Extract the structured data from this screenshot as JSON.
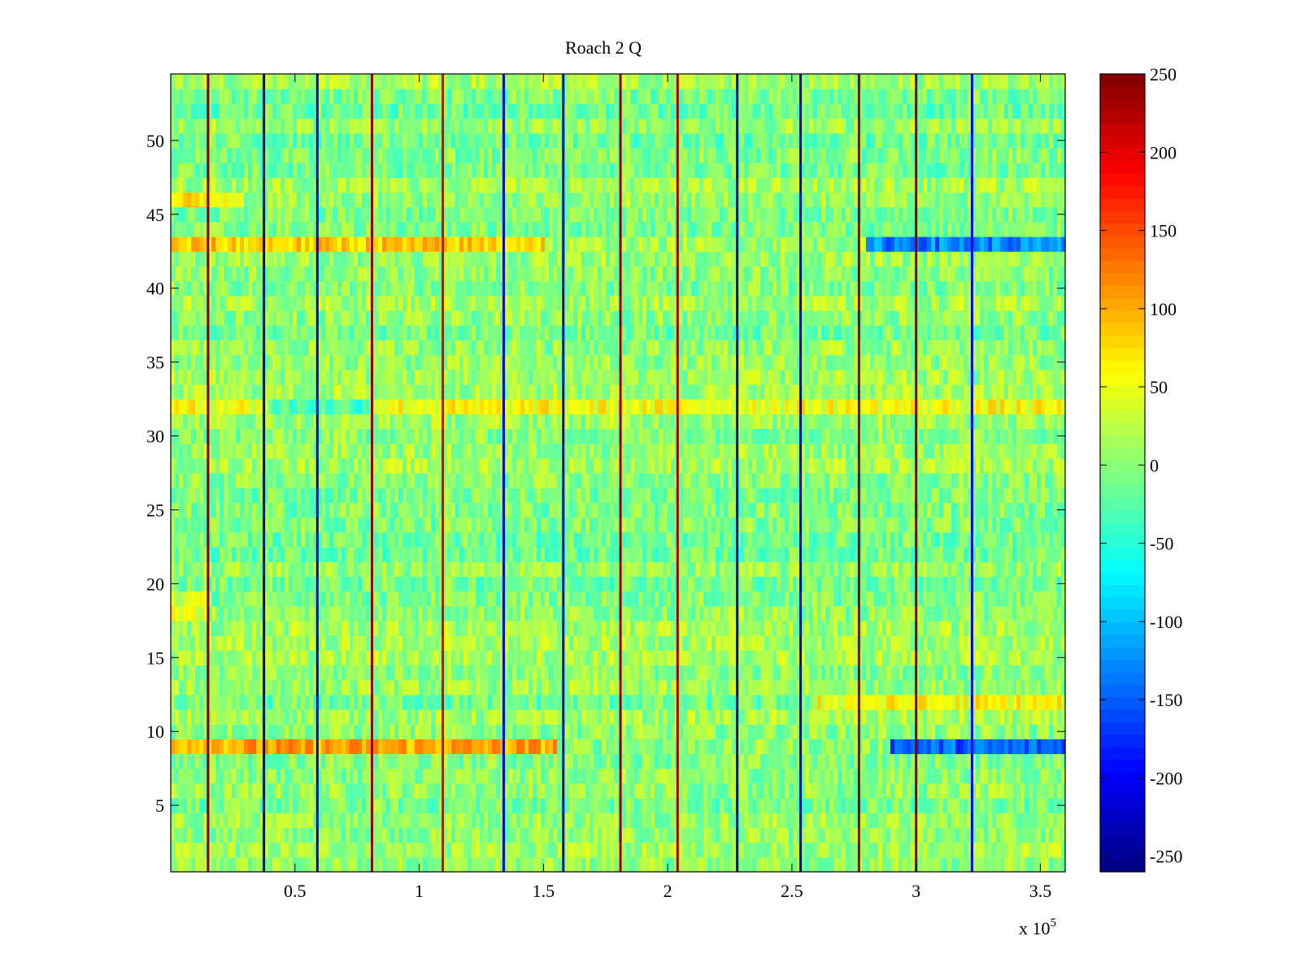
{
  "chart_data": {
    "type": "heatmap",
    "title": "Roach 2 Q",
    "xlabel": "",
    "ylabel": "",
    "x_multiplier_label": "x 10",
    "x_multiplier_exponent": "5",
    "xlim": [
      0,
      3.6
    ],
    "ylim": [
      0.5,
      54.5
    ],
    "x_ticks": [
      0.5,
      1,
      1.5,
      2,
      2.5,
      3,
      3.5
    ],
    "x_tick_labels": [
      "0.5",
      "1",
      "1.5",
      "2",
      "2.5",
      "3",
      "3.5"
    ],
    "y_ticks": [
      5,
      10,
      15,
      20,
      25,
      30,
      35,
      40,
      45,
      50
    ],
    "y_tick_labels": [
      "5",
      "10",
      "15",
      "20",
      "25",
      "30",
      "35",
      "40",
      "45",
      "50"
    ],
    "n_rows": 54,
    "colormap": "jet",
    "clim": [
      -260,
      250
    ],
    "colorbar_ticks": [
      250,
      200,
      150,
      100,
      50,
      0,
      -50,
      -100,
      -150,
      -200,
      -250
    ],
    "colorbar_tick_labels": [
      "250",
      "200",
      "150",
      "100",
      "50",
      "0",
      "-50",
      "-100",
      "-150",
      "-200",
      "-250"
    ],
    "baseline_value": 0,
    "noise_amplitude": 35,
    "vertical_stripes": [
      {
        "x": 0.15,
        "value": 250
      },
      {
        "x": 0.375,
        "value": -250
      },
      {
        "x": 0.59,
        "value": -230
      },
      {
        "x": 0.81,
        "value": 240
      },
      {
        "x": 1.095,
        "value": 200
      },
      {
        "x": 1.34,
        "value": -220
      },
      {
        "x": 1.58,
        "value": -210
      },
      {
        "x": 1.81,
        "value": 240
      },
      {
        "x": 2.04,
        "value": 230
      },
      {
        "x": 2.28,
        "value": -230
      },
      {
        "x": 2.535,
        "value": -220
      },
      {
        "x": 2.77,
        "value": 240
      },
      {
        "x": 3.0,
        "value": 250
      },
      {
        "x": 3.225,
        "value": -200
      }
    ],
    "row_offsets": [
      {
        "row": 9,
        "x_from": 0.0,
        "x_to": 1.55,
        "value": 100
      },
      {
        "row": 9,
        "x_from": 2.9,
        "x_to": 3.6,
        "value": -150
      },
      {
        "row": 12,
        "x_from": 2.6,
        "x_to": 3.6,
        "value": 70
      },
      {
        "row": 32,
        "x_from": 0.0,
        "x_to": 3.6,
        "value": 60
      },
      {
        "row": 32,
        "x_from": 0.4,
        "x_to": 0.8,
        "value": -80
      },
      {
        "row": 43,
        "x_from": 0.0,
        "x_to": 1.5,
        "value": 70
      },
      {
        "row": 43,
        "x_from": 2.8,
        "x_to": 3.6,
        "value": -140
      },
      {
        "row": 46,
        "x_from": 0.0,
        "x_to": 0.3,
        "value": 60
      },
      {
        "row": 18,
        "x_from": 0.0,
        "x_to": 0.15,
        "value": 40
      },
      {
        "row": 19,
        "x_from": 0.0,
        "x_to": 0.15,
        "value": 40
      }
    ]
  }
}
